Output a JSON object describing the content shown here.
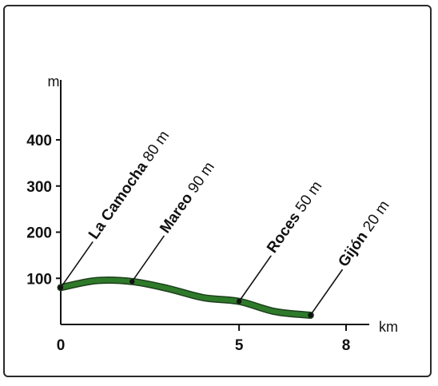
{
  "chart_data": {
    "type": "area",
    "title": "",
    "xlabel": "km",
    "ylabel": "m",
    "xlim": [
      0,
      8
    ],
    "ylim": [
      0,
      450
    ],
    "x_ticks": [
      0,
      5,
      8
    ],
    "y_ticks": [
      100,
      200,
      300,
      400
    ],
    "series": [
      {
        "x": [
          0,
          1,
          2,
          3,
          4,
          5,
          6,
          7
        ],
        "y": [
          80,
          95,
          93,
          78,
          58,
          50,
          28,
          20
        ]
      }
    ],
    "annotations": [
      {
        "name": "La Camocha",
        "elevation": "80 m",
        "x": 0,
        "y": 80
      },
      {
        "name": "Mareo",
        "elevation": "90 m",
        "x": 2,
        "y": 93
      },
      {
        "name": "Roces",
        "elevation": "50 m",
        "x": 5,
        "y": 50
      },
      {
        "name": "Gijón",
        "elevation": "20 m",
        "x": 7,
        "y": 20
      }
    ],
    "colors": {
      "line": "#2e7a2a",
      "line_dark": "#1d3f1c",
      "axis": "#111111"
    }
  }
}
